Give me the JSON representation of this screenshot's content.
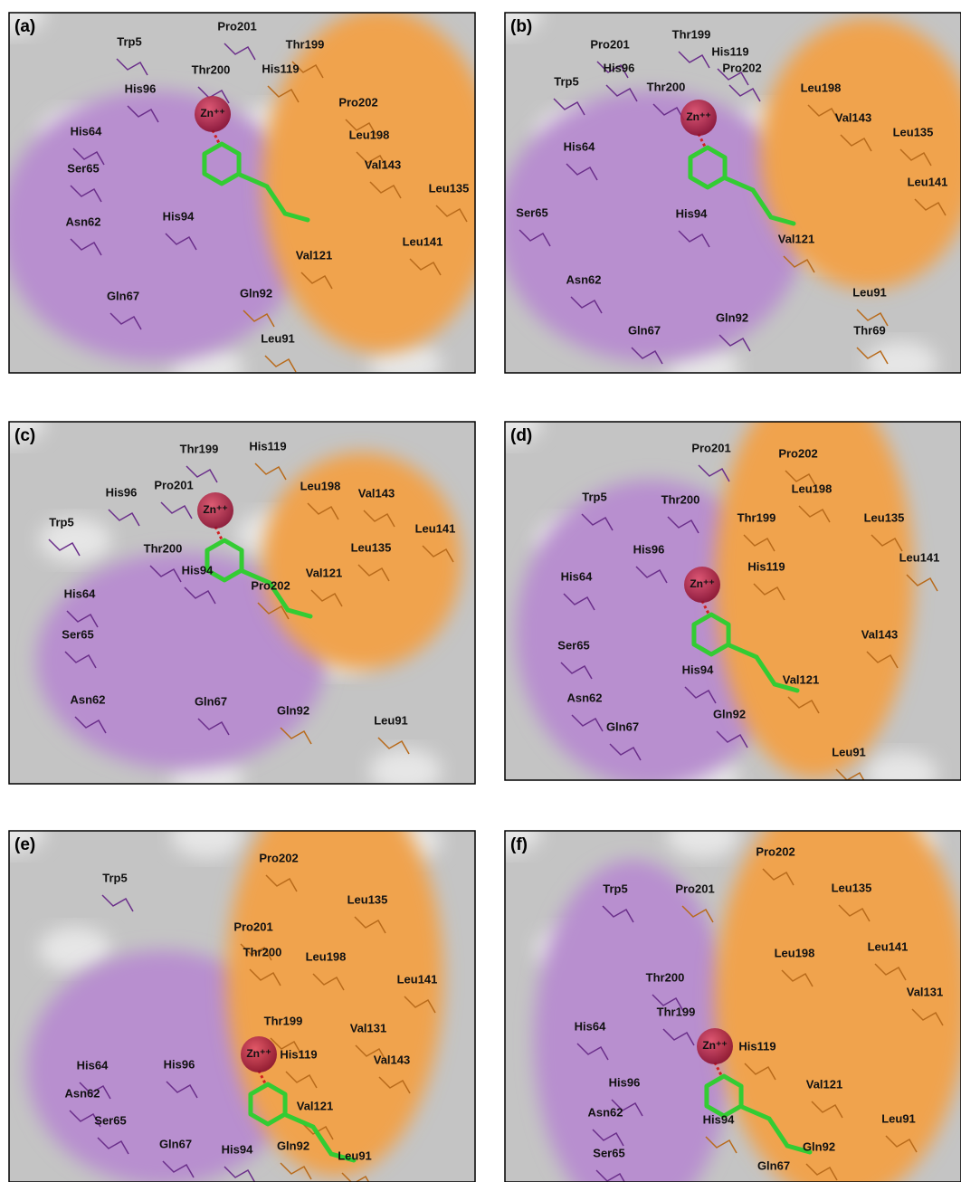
{
  "panels": [
    {
      "label": "(a)",
      "residues": [
        "Trp5",
        "Pro201",
        "Thr199",
        "Thr200",
        "His119",
        "His96",
        "Zn⁺⁺",
        "Pro202",
        "Leu198",
        "His64",
        "Ser65",
        "Val143",
        "Leu135",
        "His94",
        "Asn62",
        "Leu141",
        "Val121",
        "Gln92",
        "Gln67",
        "Leu91"
      ]
    },
    {
      "label": "(b)",
      "residues": [
        "Thr199",
        "Pro201",
        "His119",
        "His96",
        "Pro202",
        "Trp5",
        "Thr200",
        "Leu198",
        "Zn⁺⁺",
        "Val143",
        "Leu135",
        "His64",
        "Leu141",
        "Ser65",
        "His94",
        "Val121",
        "Asn62",
        "Leu91",
        "Gln92",
        "Gln67",
        "Thr69"
      ]
    },
    {
      "label": "(c)",
      "residues": [
        "Thr199",
        "His119",
        "His96",
        "Pro201",
        "Leu198",
        "Val143",
        "Zn⁺⁺",
        "Trp5",
        "Thr200",
        "Leu141",
        "Leu135",
        "His94",
        "Pro202",
        "His64",
        "Val121",
        "Ser65",
        "Asn62",
        "Gln67",
        "Gln92",
        "Leu91"
      ]
    },
    {
      "label": "(d)",
      "residues": [
        "Pro201",
        "Pro202",
        "Trp5",
        "Thr200",
        "Leu198",
        "Thr199",
        "Leu135",
        "His96",
        "Leu141",
        "His119",
        "His64",
        "Zn⁺⁺",
        "Val143",
        "Ser65",
        "His94",
        "Val121",
        "Asn62",
        "Gln92",
        "Gln67",
        "Leu91"
      ]
    },
    {
      "label": "(e)",
      "residues": [
        "Pro202",
        "Trp5",
        "Leu135",
        "Pro201",
        "Thr200",
        "Leu198",
        "Leu141",
        "Thr199",
        "Val131",
        "His64",
        "His96",
        "His119",
        "Zn⁺⁺",
        "Val143",
        "Asn62",
        "Val121",
        "Ser65",
        "Gln67",
        "His94",
        "Gln92",
        "Leu91"
      ]
    },
    {
      "label": "(f)",
      "residues": [
        "Pro202",
        "Trp5",
        "Pro201",
        "Leu135",
        "Leu198",
        "Leu141",
        "Thr200",
        "Val131",
        "Thr199",
        "His64",
        "Zn⁺⁺",
        "His119",
        "His96",
        "Val121",
        "Asn62",
        "Leu91",
        "His94",
        "Gln92",
        "Ser65",
        "Gln67"
      ]
    }
  ]
}
